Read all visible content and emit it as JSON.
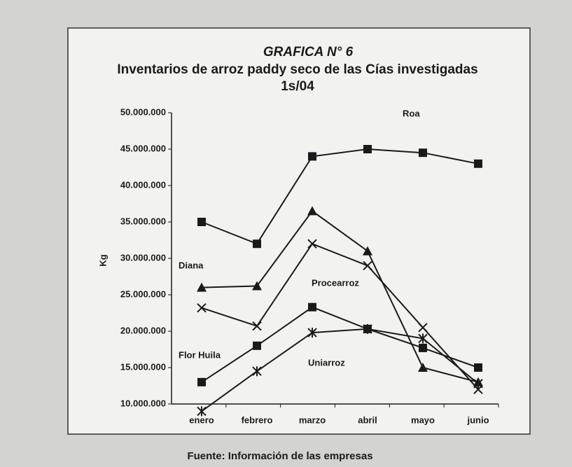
{
  "chart_data": {
    "type": "line",
    "title": "GRAFICA N° 6",
    "subtitle": "Inventarios de arroz paddy seco de las Cías investigadas 1s/04",
    "y_label": "Kg",
    "source": "Fuente: Información de las empresas",
    "categories": [
      "enero",
      "febrero",
      "marzo",
      "abril",
      "mayo",
      "junio"
    ],
    "series": [
      {
        "name": "Roa",
        "color": "#1a1a1a",
        "marker": "square",
        "values": [
          35000000,
          32000000,
          44000000,
          45000000,
          44500000,
          43000000
        ]
      },
      {
        "name": "Diana",
        "color": "#1a1a1a",
        "marker": "triangle",
        "values": [
          26000000,
          26200000,
          36500000,
          31000000,
          15000000,
          13000000
        ]
      },
      {
        "name": "Procearroz",
        "color": "#1a1a1a",
        "marker": "x",
        "values": [
          23200000,
          20700000,
          32000000,
          29000000,
          20500000,
          12000000
        ]
      },
      {
        "name": "Flor Huila",
        "color": "#1a1a1a",
        "marker": "square",
        "values": [
          13000000,
          18000000,
          23300000,
          20300000,
          17700000,
          15000000
        ]
      },
      {
        "name": "Uniarroz",
        "color": "#1a1a1a",
        "marker": "asterisk",
        "values": [
          9000000,
          14500000,
          19800000,
          20300000,
          19000000,
          12800000
        ]
      }
    ],
    "ylim": [
      10000000,
      50000000
    ],
    "yticks": [
      {
        "value": 10000000,
        "label": "10.000.000"
      },
      {
        "value": 15000000,
        "label": "15.000.000"
      },
      {
        "value": 20000000,
        "label": "20.000.000"
      },
      {
        "value": 25000000,
        "label": "25.000.000"
      },
      {
        "value": 30000000,
        "label": "30.000.000"
      },
      {
        "value": 35000000,
        "label": "35.000.000"
      },
      {
        "value": 40000000,
        "label": "40.000.000"
      },
      {
        "value": 45000000,
        "label": "45.000.000"
      },
      {
        "value": 50000000,
        "label": "50.000.000"
      }
    ],
    "grid": false
  }
}
